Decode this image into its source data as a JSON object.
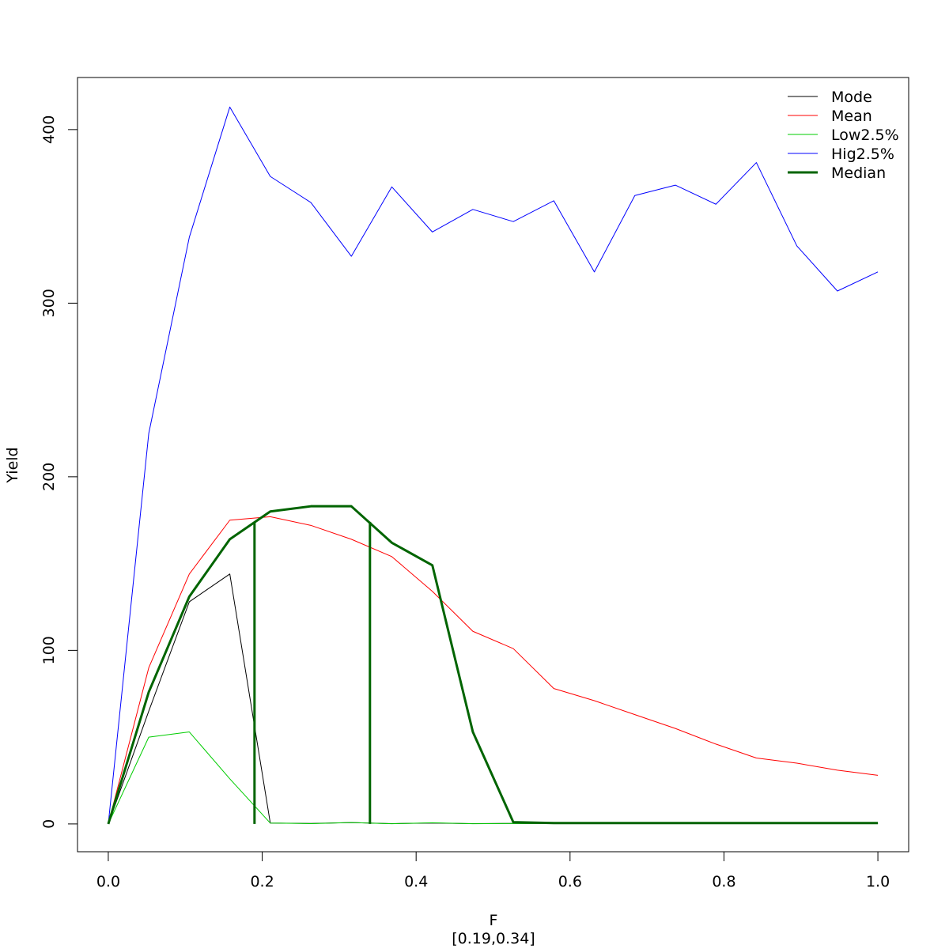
{
  "chart_data": {
    "type": "line",
    "title": "",
    "xlabel": "F",
    "xsublabel": "[0.19,0.34]",
    "ylabel": "Yield",
    "xlim": [
      -0.04,
      1.04
    ],
    "ylim": [
      -16,
      430
    ],
    "xticks": [
      0.0,
      0.2,
      0.4,
      0.6,
      0.8,
      1.0
    ],
    "xtick_labels": [
      "0.0",
      "0.2",
      "0.4",
      "0.6",
      "0.8",
      "1.0"
    ],
    "yticks": [
      0,
      100,
      200,
      300,
      400
    ],
    "ytick_labels": [
      "0",
      "100",
      "200",
      "300",
      "400"
    ],
    "grid": false,
    "legend_position": "top-right",
    "x": [
      0,
      0.0526,
      0.1053,
      0.1579,
      0.2105,
      0.2632,
      0.3158,
      0.3684,
      0.4211,
      0.4737,
      0.5263,
      0.5789,
      0.6316,
      0.6842,
      0.7368,
      0.7895,
      0.8421,
      0.8947,
      0.9474,
      1.0
    ],
    "series": [
      {
        "name": "Mode",
        "color": "#000000",
        "width": 1,
        "values": [
          0,
          65,
          128,
          144,
          0.5,
          0.3,
          0.8,
          0.2,
          0.5,
          0.2,
          0.3,
          0.2,
          0.2,
          0.2,
          0.2,
          0.2,
          0.2,
          0.2,
          0.2,
          0.2
        ]
      },
      {
        "name": "Mean",
        "color": "#ff0000",
        "width": 1,
        "values": [
          0,
          90,
          144,
          175,
          177,
          172,
          164,
          154,
          134,
          111,
          101,
          78,
          71,
          63,
          55,
          46,
          38,
          35,
          31,
          28
        ]
      },
      {
        "name": "Low2.5%",
        "color": "#00cc00",
        "width": 1,
        "values": [
          0,
          50,
          53,
          26,
          0.5,
          0.2,
          0.8,
          0.1,
          0.7,
          0.1,
          0.3,
          0.2,
          0.2,
          0.2,
          0.2,
          0.2,
          0.2,
          0.2,
          0.2,
          0.2
        ]
      },
      {
        "name": "Hig2.5%",
        "color": "#0000ff",
        "width": 1,
        "values": [
          0,
          225,
          338,
          413,
          373,
          358,
          327,
          367,
          341,
          354,
          347,
          359,
          318,
          362,
          368,
          357,
          381,
          333,
          307,
          318
        ]
      },
      {
        "name": "Median",
        "color": "#006400",
        "width": 3,
        "values": [
          0,
          76,
          131,
          164,
          180,
          183,
          183,
          162,
          149,
          53,
          1,
          0.5,
          0.5,
          0.5,
          0.5,
          0.5,
          0.5,
          0.5,
          0.5,
          0.5
        ]
      }
    ],
    "reference_lines": [
      {
        "x": 0.19,
        "y_from": 0,
        "y_to": 174,
        "color": "#006400"
      },
      {
        "x": 0.34,
        "y_from": 0,
        "y_to": 174,
        "color": "#006400"
      }
    ]
  }
}
